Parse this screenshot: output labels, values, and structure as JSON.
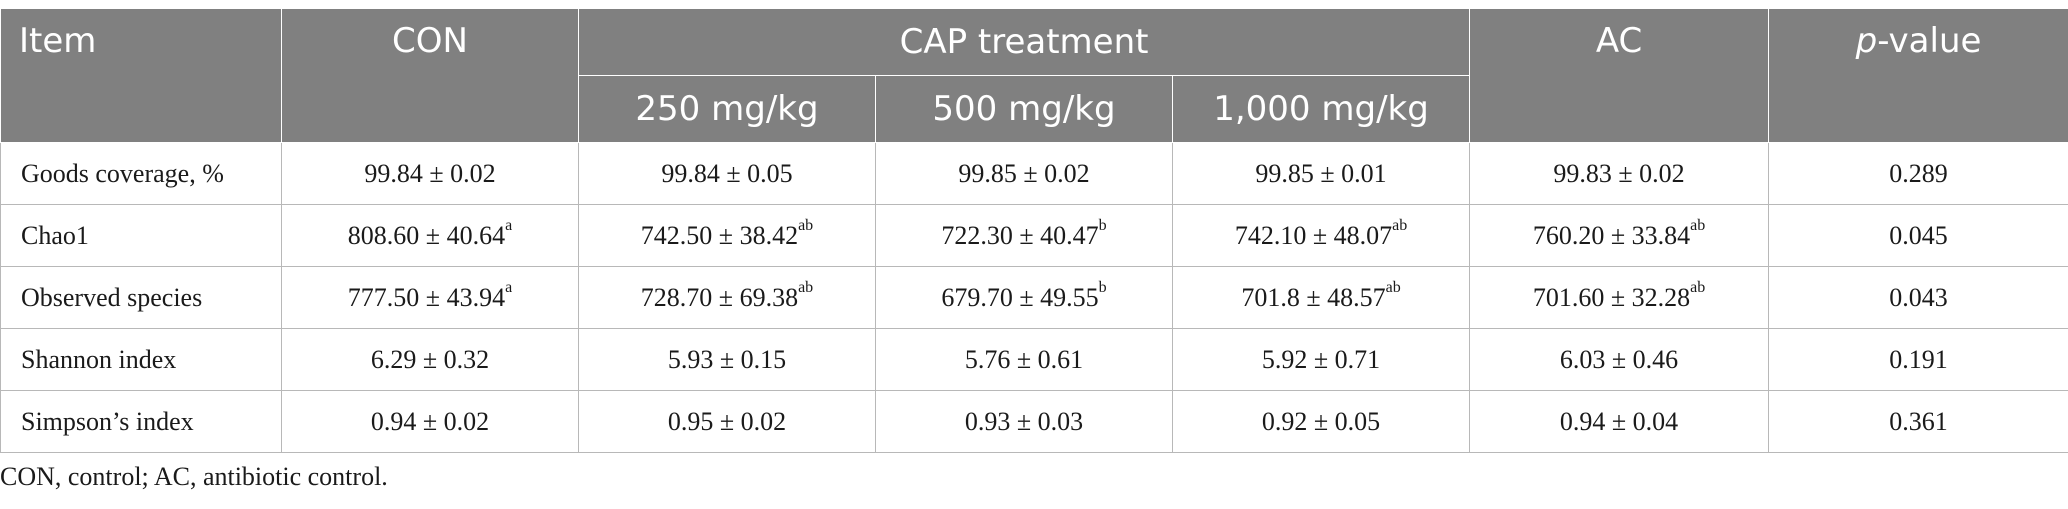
{
  "header": {
    "item": "Item",
    "con": "CON",
    "cap_group": "CAP treatment",
    "cap_250": "250 mg/kg",
    "cap_500": "500 mg/kg",
    "cap_1000": "1,000 mg/kg",
    "ac": "AC",
    "p_italic": "p",
    "p_rest": "-value"
  },
  "rows": [
    {
      "label": "Goods coverage, %",
      "con": "99.84 ± 0.02",
      "con_sup": "",
      "c250": "99.84 ± 0.05",
      "c250_sup": "",
      "c500": "99.85 ± 0.02",
      "c500_sup": "",
      "c1000": "99.85 ± 0.01",
      "c1000_sup": "",
      "ac": "99.83 ± 0.02",
      "ac_sup": "",
      "p": "0.289"
    },
    {
      "label": "Chao1",
      "con": "808.60 ± 40.64",
      "con_sup": "a",
      "c250": "742.50 ± 38.42",
      "c250_sup": "ab",
      "c500": "722.30 ± 40.47",
      "c500_sup": "b",
      "c1000": "742.10 ± 48.07",
      "c1000_sup": "ab",
      "ac": "760.20 ± 33.84",
      "ac_sup": "ab",
      "p": "0.045"
    },
    {
      "label": "Observed species",
      "con": "777.50 ± 43.94",
      "con_sup": "a",
      "c250": "728.70 ± 69.38",
      "c250_sup": "ab",
      "c500": "679.70 ± 49.55",
      "c500_sup": "b",
      "c1000": "701.8 ± 48.57",
      "c1000_sup": "ab",
      "ac": "701.60 ± 32.28",
      "ac_sup": "ab",
      "p": "0.043"
    },
    {
      "label": "Shannon index",
      "con": "6.29 ± 0.32",
      "con_sup": "",
      "c250": "5.93 ± 0.15",
      "c250_sup": "",
      "c500": "5.76 ± 0.61",
      "c500_sup": "",
      "c1000": "5.92 ± 0.71",
      "c1000_sup": "",
      "ac": "6.03 ± 0.46",
      "ac_sup": "",
      "p": "0.191"
    },
    {
      "label": "Simpson’s index",
      "con": "0.94 ± 0.02",
      "con_sup": "",
      "c250": "0.95 ± 0.02",
      "c250_sup": "",
      "c500": "0.93 ± 0.03",
      "c500_sup": "",
      "c1000": "0.92 ± 0.05",
      "c1000_sup": "",
      "ac": "0.94 ± 0.04",
      "ac_sup": "",
      "p": "0.361"
    }
  ],
  "footnote": "CON, control; AC, antibiotic control."
}
